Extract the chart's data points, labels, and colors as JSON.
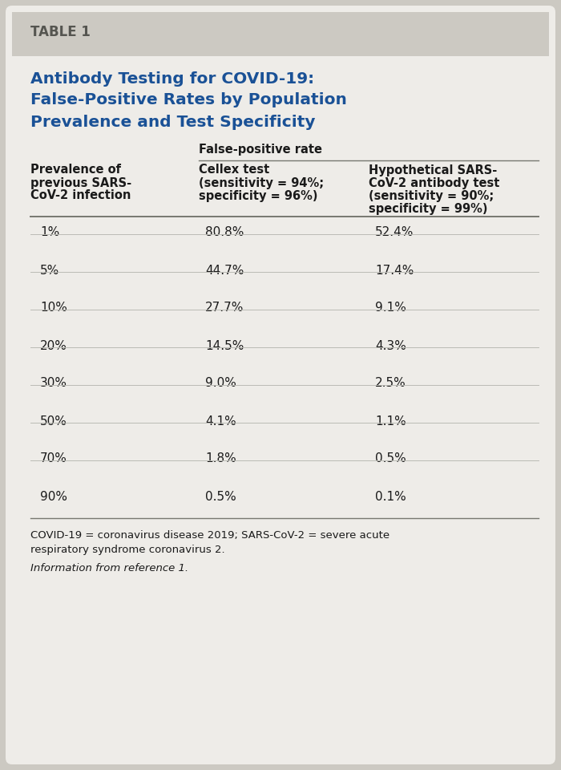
{
  "table_label": "TABLE 1",
  "title_line1": "Antibody Testing for COVID-19:",
  "title_line2": "False-Positive Rates by Population",
  "title_line3": "Prevalence and Test Specificity",
  "col_group_header": "False-positive rate",
  "col1_header_lines": [
    "Prevalence of",
    "previous SARS-",
    "CoV-2 infection"
  ],
  "col2_header_lines": [
    "Cellex test",
    "(sensitivity = 94%;",
    "specificity = 96%)"
  ],
  "col3_header_lines": [
    "Hypothetical SARS-",
    "CoV-2 antibody test",
    "(sensitivity = 90%;",
    "specificity = 99%)"
  ],
  "prevalence": [
    "1%",
    "5%",
    "10%",
    "20%",
    "30%",
    "50%",
    "70%",
    "90%"
  ],
  "cellex_values": [
    "80.8%",
    "44.7%",
    "27.7%",
    "14.5%",
    "9.0%",
    "4.1%",
    "1.8%",
    "0.5%"
  ],
  "hypothetical_values": [
    "52.4%",
    "17.4%",
    "9.1%",
    "4.3%",
    "2.5%",
    "1.1%",
    "0.5%",
    "0.1%"
  ],
  "footnote1": "COVID-19 = coronavirus disease 2019; SARS-CoV-2 = severe acute",
  "footnote2": "respiratory syndrome coronavirus 2.",
  "footnote3": "Information from reference 1.",
  "bg_color": "#ccc9c2",
  "panel_color": "#eeece8",
  "title_color": "#1a5196",
  "header_color": "#1a1a1a",
  "data_color": "#1a1a1a",
  "table_label_color": "#555550",
  "line_color": "#777770",
  "sep_line_color": "#bbbbb5"
}
